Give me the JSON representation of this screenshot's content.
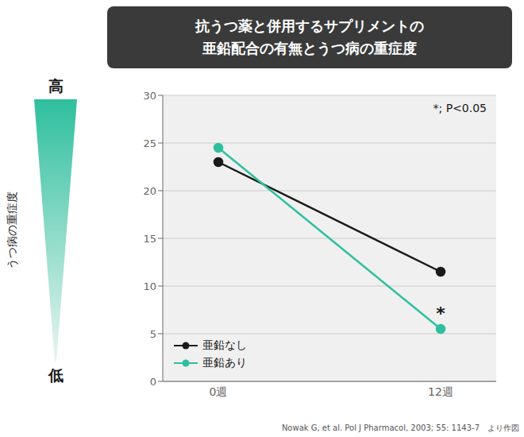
{
  "chart_data": {
    "type": "line",
    "title": "抗うつ薬と併用するサプリメントの",
    "subtitle": "亜鉛配合の有無とうつ病の重症度",
    "y_label": "うつ病の重症度",
    "y_high_label": "高",
    "y_low_label": "低",
    "categories": [
      "0週",
      "12週"
    ],
    "series": [
      {
        "name": "亜鉛なし",
        "color": "#1a1a1a",
        "values": [
          23,
          11.5
        ],
        "marker": "circle"
      },
      {
        "name": "亜鉛あり",
        "color": "#2ebf9e",
        "values": [
          24.5,
          5.5
        ],
        "marker": "circle"
      }
    ],
    "ylim": [
      0,
      30
    ],
    "yticks": [
      0,
      5,
      10,
      15,
      20,
      25,
      30
    ],
    "grid": true,
    "legend": "lower left",
    "annotations": [
      {
        "text": "*",
        "series": "亜鉛あり",
        "x": "12週"
      },
      {
        "text": "*; P<0.05"
      }
    ],
    "citation": "Nowak G, et al. Pol J Pharmacol, 2003; 55: 1143-7　より作図"
  }
}
